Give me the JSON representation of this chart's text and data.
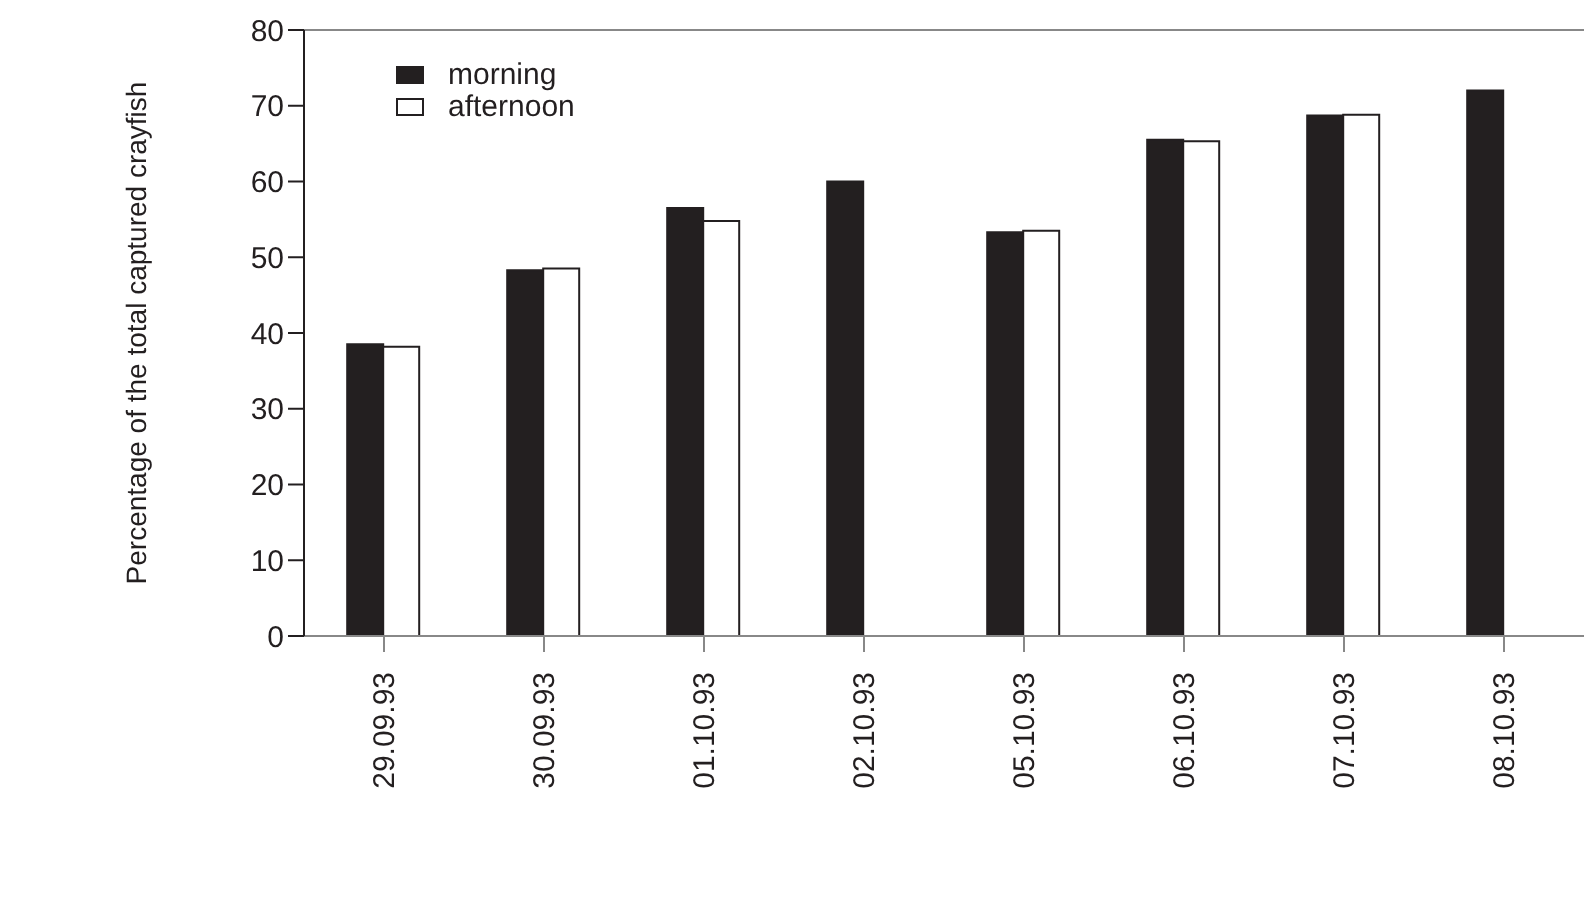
{
  "chart_data": {
    "type": "bar",
    "ylabel": "Percentage of the total captured crayfish",
    "categories": [
      "29.09.93",
      "30.09.93",
      "01.10.93",
      "02.10.93",
      "05.10.93",
      "06.10.93",
      "07.10.93",
      "08.10.93"
    ],
    "series": [
      {
        "name": "morning",
        "color": "#231f20",
        "values": [
          38.5,
          48.3,
          56.5,
          60,
          53.3,
          65.5,
          68.7,
          72
        ]
      },
      {
        "name": "afternoon",
        "color": "#ffffff",
        "values": [
          38.2,
          48.5,
          54.8,
          null,
          53.5,
          65.3,
          68.8,
          null
        ]
      }
    ],
    "ylim": [
      0,
      80
    ],
    "yticks": [
      0,
      10,
      20,
      30,
      40,
      50,
      60,
      70,
      80
    ],
    "legend": "top left"
  }
}
